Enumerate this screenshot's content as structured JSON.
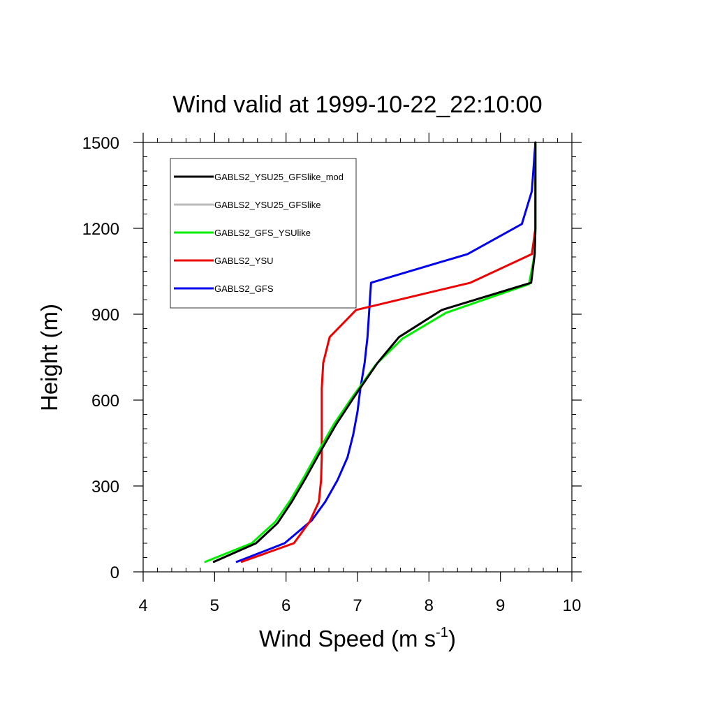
{
  "chart_data": {
    "type": "line",
    "title": "Wind valid at 1999-10-22_22:10:00",
    "xlabel": "Wind Speed (m s",
    "xlabel_sup": "-1",
    "xlabel_close": ")",
    "ylabel": "Height (m)",
    "xlim": [
      4,
      10
    ],
    "ylim": [
      0,
      1500
    ],
    "xticks": [
      4,
      5,
      6,
      7,
      8,
      9,
      10
    ],
    "yticks": [
      0,
      300,
      600,
      900,
      1200,
      1500
    ],
    "legend_placement": "top-left",
    "series": [
      {
        "name": "GABLS2_YSU25_GFSlike_mod",
        "color": "#000000",
        "points": [
          [
            4.99,
            35
          ],
          [
            5.58,
            100
          ],
          [
            5.88,
            170
          ],
          [
            6.08,
            245
          ],
          [
            6.28,
            330
          ],
          [
            6.48,
            420
          ],
          [
            6.7,
            515
          ],
          [
            6.95,
            610
          ],
          [
            7.28,
            730
          ],
          [
            7.58,
            820
          ],
          [
            8.18,
            915
          ],
          [
            9.43,
            1010
          ],
          [
            9.48,
            1110
          ],
          [
            9.49,
            1200
          ],
          [
            9.49,
            1300
          ],
          [
            9.49,
            1500
          ]
        ]
      },
      {
        "name": "GABLS2_YSU25_GFSlike",
        "color": "#bbbbbb",
        "points": [
          [
            4.99,
            35
          ],
          [
            5.58,
            100
          ],
          [
            5.88,
            170
          ],
          [
            6.08,
            245
          ],
          [
            6.28,
            330
          ],
          [
            6.48,
            420
          ],
          [
            6.7,
            515
          ],
          [
            6.95,
            610
          ],
          [
            7.28,
            730
          ],
          [
            7.58,
            820
          ],
          [
            8.18,
            915
          ],
          [
            9.43,
            1010
          ],
          [
            9.48,
            1110
          ],
          [
            9.49,
            1200
          ],
          [
            9.49,
            1300
          ],
          [
            9.49,
            1500
          ]
        ]
      },
      {
        "name": "GABLS2_GFS_YSUlike",
        "color": "#00ee00",
        "points": [
          [
            4.87,
            35
          ],
          [
            5.52,
            100
          ],
          [
            5.85,
            175
          ],
          [
            6.06,
            250
          ],
          [
            6.26,
            335
          ],
          [
            6.46,
            425
          ],
          [
            6.68,
            520
          ],
          [
            6.94,
            615
          ],
          [
            7.26,
            725
          ],
          [
            7.63,
            815
          ],
          [
            8.24,
            905
          ],
          [
            9.4,
            1005
          ],
          [
            9.48,
            1110
          ],
          [
            9.49,
            1200
          ],
          [
            9.49,
            1300
          ],
          [
            9.49,
            1500
          ]
        ]
      },
      {
        "name": "GABLS2_YSU",
        "color": "#ee0000",
        "points": [
          [
            5.38,
            35
          ],
          [
            6.11,
            100
          ],
          [
            6.33,
            175
          ],
          [
            6.46,
            245
          ],
          [
            6.49,
            320
          ],
          [
            6.5,
            400
          ],
          [
            6.5,
            500
          ],
          [
            6.5,
            640
          ],
          [
            6.52,
            730
          ],
          [
            6.61,
            820
          ],
          [
            6.98,
            915
          ],
          [
            8.58,
            1010
          ],
          [
            9.44,
            1110
          ],
          [
            9.49,
            1200
          ],
          [
            9.49,
            1300
          ],
          [
            9.49,
            1500
          ]
        ]
      },
      {
        "name": "GABLS2_GFS",
        "color": "#0000ee",
        "points": [
          [
            5.31,
            35
          ],
          [
            5.98,
            100
          ],
          [
            6.36,
            180
          ],
          [
            6.55,
            245
          ],
          [
            6.72,
            320
          ],
          [
            6.86,
            400
          ],
          [
            6.94,
            480
          ],
          [
            7.0,
            560
          ],
          [
            7.04,
            640
          ],
          [
            7.1,
            730
          ],
          [
            7.14,
            820
          ],
          [
            7.19,
            1010
          ],
          [
            8.54,
            1110
          ],
          [
            9.3,
            1215
          ],
          [
            9.44,
            1330
          ],
          [
            9.49,
            1500
          ]
        ]
      }
    ]
  }
}
